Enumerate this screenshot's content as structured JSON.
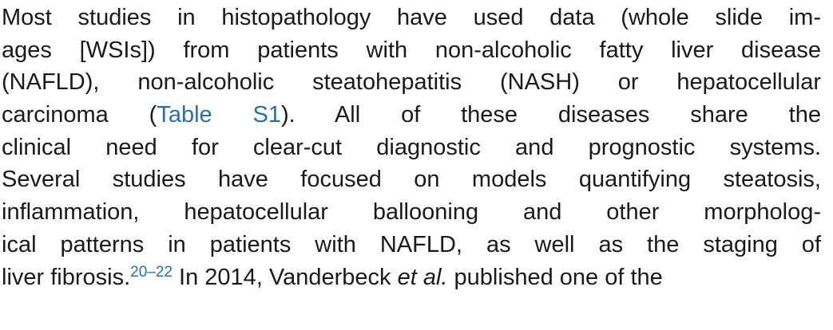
{
  "paragraph": {
    "lines": [
      {
        "text": "Most studies in histopathology have used data (whole slide im-"
      },
      {
        "text": "ages [WSIs]) from patients with non-alcoholic fatty liver disease"
      },
      {
        "text": "(NAFLD), non-alcoholic steatohepatitis (NASH) or hepatocellular"
      },
      {
        "before": "carcinoma (",
        "link": "Table S1",
        "after": "). All of these diseases share the"
      },
      {
        "text": "clinical need for clear-cut diagnostic and prognostic systems."
      },
      {
        "text": "Several studies have focused on models quantifying steatosis,"
      },
      {
        "text": "inflammation, hepatocellular ballooning and other morpholog-"
      },
      {
        "text": "ical patterns in patients with NAFLD, as well as the staging of"
      },
      {
        "before": "liver fibrosis.",
        "sup": "20–22",
        "middle": " In 2014, Vanderbeck ",
        "italic": "et al.",
        "after": " published one of the"
      }
    ]
  },
  "colors": {
    "text": "#1a1a1a",
    "link": "#2d6ea6",
    "background": "#ffffff"
  }
}
